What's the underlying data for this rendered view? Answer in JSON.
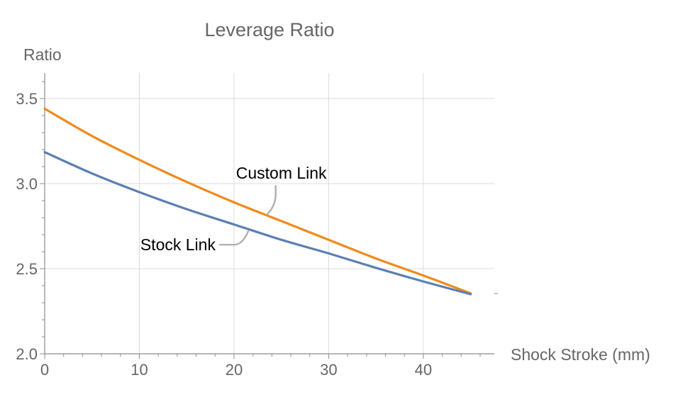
{
  "chart_data": {
    "type": "line",
    "title": "Leverage Ratio",
    "xlabel": "Shock Stroke (mm)",
    "ylabel": "Ratio",
    "xlim": [
      0,
      47.5
    ],
    "ylim": [
      2.0,
      3.65
    ],
    "x_ticks": [
      0,
      10,
      20,
      30,
      40
    ],
    "y_ticks": [
      2.0,
      2.5,
      3.0,
      3.5
    ],
    "x_tick_labels": [
      "0",
      "10",
      "20",
      "30",
      "40"
    ],
    "y_tick_labels": [
      "2.0",
      "2.5",
      "3.0",
      "3.5"
    ],
    "grid": true,
    "series": [
      {
        "name": "Custom Link",
        "color": "#f08a1c",
        "x": [
          0,
          5,
          10,
          15,
          20,
          25,
          30,
          35,
          40,
          45
        ],
        "y": [
          3.44,
          3.28,
          3.14,
          3.01,
          2.89,
          2.78,
          2.67,
          2.56,
          2.46,
          2.355
        ]
      },
      {
        "name": "Stock Link",
        "color": "#5b7fb4",
        "x": [
          0,
          5,
          10,
          15,
          20,
          25,
          30,
          35,
          40,
          45
        ],
        "y": [
          3.185,
          3.06,
          2.95,
          2.85,
          2.76,
          2.67,
          2.59,
          2.505,
          2.425,
          2.35
        ]
      }
    ],
    "annotations": [
      {
        "text": "Custom Link",
        "series": "Custom Link",
        "x": 23.5,
        "y": 2.82
      },
      {
        "text": "Stock Link",
        "series": "Stock Link",
        "x": 21.5,
        "y": 2.72
      }
    ]
  }
}
